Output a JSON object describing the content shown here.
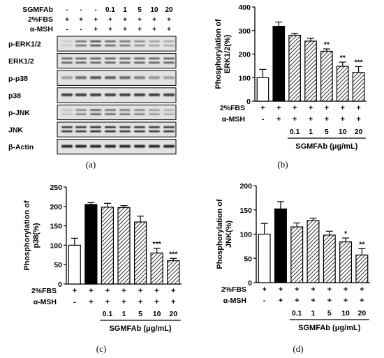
{
  "blot": {
    "header_rows": [
      {
        "label": "SGMFAb",
        "values": [
          "-",
          "-",
          "-",
          "0.1",
          "1",
          "5",
          "10",
          "20"
        ]
      },
      {
        "label": "2%FBS",
        "values": [
          "+",
          "+",
          "+",
          "+",
          "+",
          "+",
          "+",
          "+"
        ]
      },
      {
        "label": "α-MSH",
        "values": [
          "-",
          "-",
          "+",
          "+",
          "+",
          "+",
          "+",
          "+"
        ]
      }
    ],
    "bands": [
      {
        "label": "p-ERK1/2",
        "intensity": [
          0.15,
          0.55,
          0.7,
          0.6,
          0.55,
          0.45,
          0.35,
          0.3
        ],
        "doublet": true
      },
      {
        "label": "ERK1/2",
        "intensity": [
          0.65,
          0.65,
          0.65,
          0.65,
          0.65,
          0.65,
          0.65,
          0.65
        ],
        "doublet": true
      },
      {
        "label": "p-p38",
        "intensity": [
          0.35,
          0.6,
          0.7,
          0.65,
          0.6,
          0.5,
          0.4,
          0.35
        ],
        "doublet": false
      },
      {
        "label": "p38",
        "intensity": [
          0.8,
          0.8,
          0.8,
          0.8,
          0.8,
          0.8,
          0.8,
          0.8
        ],
        "doublet": false
      },
      {
        "label": "p-JNK",
        "intensity": [
          0.2,
          0.5,
          0.65,
          0.6,
          0.55,
          0.5,
          0.4,
          0.3
        ],
        "doublet": true
      },
      {
        "label": "JNK",
        "intensity": [
          0.85,
          0.85,
          0.9,
          0.9,
          0.85,
          0.85,
          0.85,
          0.85
        ],
        "doublet": true
      },
      {
        "label": "β-Actin",
        "intensity": [
          0.9,
          0.9,
          0.9,
          0.9,
          0.9,
          0.9,
          0.9,
          0.9
        ],
        "doublet": false
      }
    ]
  },
  "chart_data": [
    {
      "type": "bar",
      "panel": "(b)",
      "ylabel": "Phosphorylation of ERK1/2(%)",
      "ylim": [
        0,
        400
      ],
      "yticks": [
        0,
        100,
        200,
        300,
        400
      ],
      "values": [
        100,
        318,
        280,
        255,
        212,
        148,
        122
      ],
      "errors": [
        35,
        18,
        8,
        12,
        10,
        18,
        25
      ],
      "significance": [
        "",
        "",
        "",
        "",
        "**",
        "**",
        "***"
      ],
      "fills": [
        "white",
        "black",
        "hatch",
        "hatch",
        "hatch",
        "hatch",
        "hatch"
      ],
      "row_labels": [
        "2%FBS",
        "α-MSH"
      ],
      "rows": [
        [
          "+",
          "+",
          "+",
          "+",
          "+",
          "+",
          "+"
        ],
        [
          "-",
          "+",
          "+",
          "+",
          "+",
          "+",
          "+"
        ]
      ],
      "doses": [
        "",
        "",
        "0.1",
        "1",
        "5",
        "10",
        "20"
      ],
      "dose_label": "SGMFAb (μg/mL)"
    },
    {
      "type": "bar",
      "panel": "(c)",
      "ylabel": "Phosphorylation of p38(%)",
      "ylim": [
        0,
        250
      ],
      "yticks": [
        0,
        50,
        100,
        150,
        200,
        250
      ],
      "values": [
        100,
        205,
        198,
        197,
        160,
        80,
        60
      ],
      "errors": [
        18,
        5,
        10,
        5,
        15,
        12,
        6
      ],
      "significance": [
        "",
        "",
        "",
        "",
        "",
        "***",
        "***"
      ],
      "fills": [
        "white",
        "black",
        "hatch",
        "hatch",
        "hatch",
        "hatch",
        "hatch"
      ],
      "row_labels": [
        "2%FBS",
        "α-MSH"
      ],
      "rows": [
        [
          "+",
          "+",
          "+",
          "+",
          "+",
          "+",
          "+"
        ],
        [
          "-",
          "+",
          "+",
          "+",
          "+",
          "+",
          "+"
        ]
      ],
      "doses": [
        "",
        "",
        "0.1",
        "1",
        "5",
        "10",
        "20"
      ],
      "dose_label": "SGMFAb (μg/mL)"
    },
    {
      "type": "bar",
      "panel": "(d)",
      "ylabel": "Phosphorylation of JNK(%)",
      "ylim": [
        0,
        200
      ],
      "yticks": [
        0,
        50,
        100,
        150,
        200
      ],
      "values": [
        100,
        152,
        115,
        128,
        98,
        84,
        57
      ],
      "errors": [
        22,
        15,
        8,
        5,
        8,
        8,
        13
      ],
      "significance": [
        "",
        "",
        "",
        "",
        "",
        "*",
        "**"
      ],
      "fills": [
        "white",
        "black",
        "hatch",
        "hatch",
        "hatch",
        "hatch",
        "hatch"
      ],
      "row_labels": [
        "2%FBS",
        "α-MSH"
      ],
      "rows": [
        [
          "+",
          "+",
          "+",
          "+",
          "+",
          "+",
          "+"
        ],
        [
          "-",
          "+",
          "+",
          "+",
          "+",
          "+",
          "+"
        ]
      ],
      "doses": [
        "",
        "",
        "0.1",
        "1",
        "5",
        "10",
        "20"
      ],
      "dose_label": "SGMFAb (μg/mL)"
    }
  ],
  "captions": {
    "a": "(a)",
    "b": "(b)",
    "c": "(c)",
    "d": "(d)"
  }
}
